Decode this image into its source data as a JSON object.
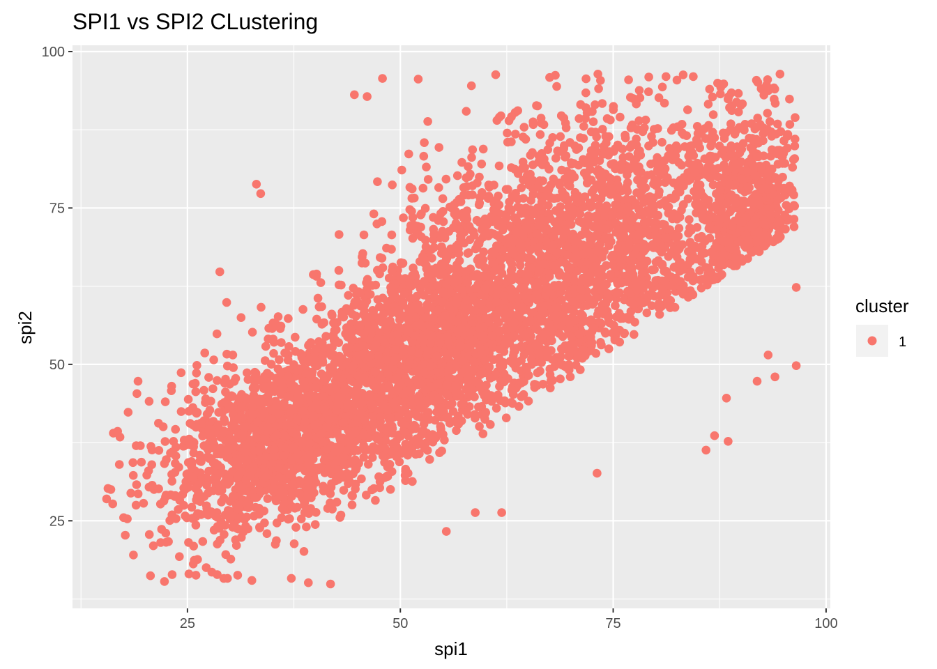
{
  "chart_data": {
    "type": "scatter",
    "title": "SPI1 vs SPI2 CLustering",
    "xlabel": "spi1",
    "ylabel": "spi2",
    "xlim": [
      11.5,
      100.5
    ],
    "ylim": [
      11,
      101
    ],
    "x_ticks": [
      25,
      50,
      75,
      100
    ],
    "x_tick_labels": [
      "25",
      "50",
      "75",
      "100"
    ],
    "y_ticks": [
      25,
      50,
      75,
      100
    ],
    "y_tick_labels": [
      "25",
      "50",
      "75",
      "100"
    ],
    "grid": true,
    "panel_background": "#ebebeb",
    "point_color": "#f8766d",
    "legend": {
      "title": "cluster",
      "entries": [
        {
          "label": "1",
          "color": "#f8766d"
        }
      ],
      "placement": "right"
    },
    "series": [
      {
        "name": "1",
        "color": "#f8766d",
        "points": [
          [
            15.5,
            28.5
          ],
          [
            16.0,
            30.0
          ],
          [
            16.3,
            39.0
          ],
          [
            16.8,
            39.3
          ],
          [
            17.0,
            34.0
          ],
          [
            17.5,
            25.5
          ],
          [
            17.7,
            22.7
          ],
          [
            18.6,
            34.3
          ],
          [
            19.2,
            47.3
          ],
          [
            21.0,
            21.0
          ],
          [
            22.3,
            15.3
          ],
          [
            23.2,
            16.4
          ],
          [
            25.8,
            18.7
          ],
          [
            26.0,
            16.3
          ],
          [
            27.2,
            17.5
          ],
          [
            28.5,
            16.4
          ],
          [
            29.5,
            19.6
          ],
          [
            29.7,
            15.8
          ],
          [
            30.9,
            16.3
          ],
          [
            28.8,
            64.8
          ],
          [
            29.6,
            59.9
          ],
          [
            33.1,
            78.8
          ],
          [
            33.6,
            77.3
          ],
          [
            37.2,
            15.8
          ],
          [
            39.2,
            15.1
          ],
          [
            41.8,
            14.9
          ],
          [
            44.6,
            93.1
          ],
          [
            46.1,
            92.8
          ],
          [
            47.9,
            95.7
          ],
          [
            52.1,
            95.6
          ],
          [
            55.4,
            23.3
          ],
          [
            58.8,
            26.3
          ],
          [
            61.9,
            26.3
          ],
          [
            61.2,
            96.3
          ],
          [
            68.2,
            96.2
          ],
          [
            73.2,
            96.4
          ],
          [
            81.2,
            96.0
          ],
          [
            84.4,
            96.0
          ],
          [
            89.7,
            93.3
          ],
          [
            93.9,
            92.4
          ],
          [
            95.7,
            92.4
          ],
          [
            96.3,
            75.3
          ],
          [
            96.5,
            62.3
          ],
          [
            96.5,
            49.8
          ],
          [
            88.3,
            44.6
          ],
          [
            88.5,
            37.7
          ],
          [
            86.9,
            38.6
          ],
          [
            85.9,
            36.3
          ],
          [
            73.1,
            32.6
          ],
          [
            94.0,
            48.0
          ],
          [
            93.2,
            51.5
          ],
          [
            91.9,
            47.3
          ]
        ]
      }
    ]
  }
}
